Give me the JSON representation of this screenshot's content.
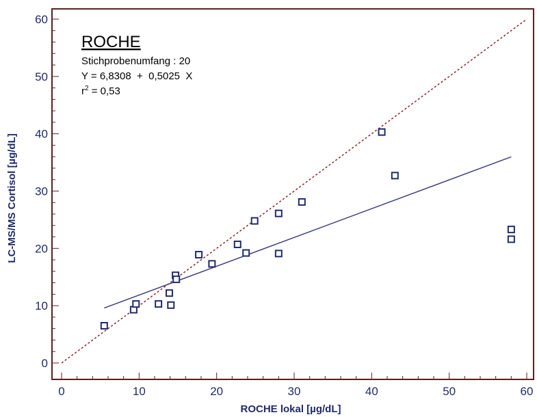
{
  "chart_data": {
    "type": "scatter",
    "title": "",
    "xlabel": "ROCHE lokal [µg/dL]",
    "ylabel": "LC-MS/MS Cortisol [µg/dL]",
    "xlim": [
      0,
      60
    ],
    "ylim": [
      0,
      60
    ],
    "xticks": [
      "0",
      "10",
      "20",
      "30",
      "40",
      "50",
      "60"
    ],
    "yticks": [
      "0",
      "10",
      "20",
      "30",
      "40",
      "50",
      "60"
    ],
    "grid": false,
    "annotation": {
      "heading": "ROCHE",
      "sample_size": "Stichprobenumfang : 20",
      "equation": "Y = 6,8308  +  0,5025  X",
      "r2_prefix": "r",
      "r2_sup": "2",
      "r2_value": " = 0,53"
    },
    "points": [
      {
        "x": 5.5,
        "y": 6.5
      },
      {
        "x": 9.3,
        "y": 9.3
      },
      {
        "x": 9.6,
        "y": 10.3
      },
      {
        "x": 12.5,
        "y": 10.3
      },
      {
        "x": 13.9,
        "y": 12.2
      },
      {
        "x": 14.1,
        "y": 10.1
      },
      {
        "x": 14.7,
        "y": 15.3
      },
      {
        "x": 14.8,
        "y": 14.6
      },
      {
        "x": 17.7,
        "y": 18.9
      },
      {
        "x": 19.4,
        "y": 17.3
      },
      {
        "x": 22.7,
        "y": 20.7
      },
      {
        "x": 23.8,
        "y": 19.2
      },
      {
        "x": 24.9,
        "y": 24.8
      },
      {
        "x": 28.0,
        "y": 26.1
      },
      {
        "x": 28.0,
        "y": 19.1
      },
      {
        "x": 31.0,
        "y": 28.1
      },
      {
        "x": 41.3,
        "y": 40.3
      },
      {
        "x": 43.0,
        "y": 32.7
      },
      {
        "x": 58.0,
        "y": 23.3
      },
      {
        "x": 58.0,
        "y": 21.6
      }
    ],
    "regression_line": {
      "intercept": 6.8308,
      "slope": 0.5025,
      "x_range": [
        5.5,
        58.0
      ],
      "color": "#3a3f7f"
    },
    "identity_line": {
      "x_range": [
        0,
        60
      ],
      "color": "#8b2525",
      "style": "dotted"
    },
    "colors": {
      "frame": "#5c1f1f",
      "marker": "#1f2a6b",
      "axis_text": "#1f2a6b"
    }
  }
}
